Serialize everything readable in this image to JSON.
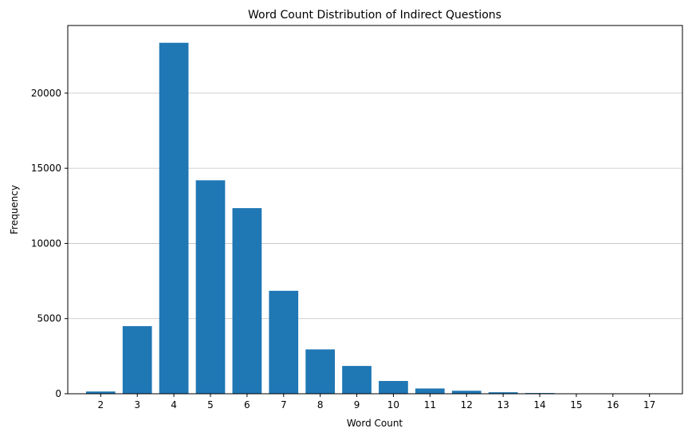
{
  "chart_data": {
    "type": "bar",
    "title": "Word Count Distribution of Indirect Questions",
    "xlabel": "Word Count",
    "ylabel": "Frequency",
    "categories": [
      "2",
      "3",
      "4",
      "5",
      "6",
      "7",
      "8",
      "9",
      "10",
      "11",
      "12",
      "13",
      "14",
      "15",
      "16",
      "17"
    ],
    "values": [
      150,
      4500,
      23350,
      14200,
      12350,
      6850,
      2950,
      1850,
      850,
      350,
      200,
      100,
      50,
      20,
      10,
      5
    ],
    "ylim": [
      0,
      24500
    ],
    "yticks": [
      0,
      5000,
      10000,
      15000,
      20000
    ],
    "ytick_labels": [
      "0",
      "5000",
      "10000",
      "15000",
      "20000"
    ],
    "grid": "y",
    "colors": {
      "bar": "#1f77b4",
      "grid": "#c0c0c0",
      "axis": "#000000"
    }
  }
}
